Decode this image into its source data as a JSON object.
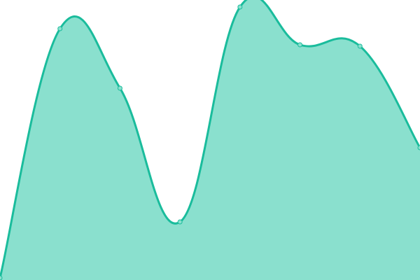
{
  "chart_data": {
    "type": "area",
    "x": [
      0,
      1,
      2,
      3,
      4,
      5,
      6,
      7
    ],
    "values": [
      3,
      359,
      274,
      83,
      390,
      336,
      334,
      189
    ],
    "ylim": [
      0,
      400
    ],
    "grid": false,
    "smooth": true,
    "colors": {
      "line": "#1abc9c",
      "fill": "#8ae0ce",
      "point_fill": "#8ae0ce",
      "point_stroke": "#1abc9c"
    }
  }
}
